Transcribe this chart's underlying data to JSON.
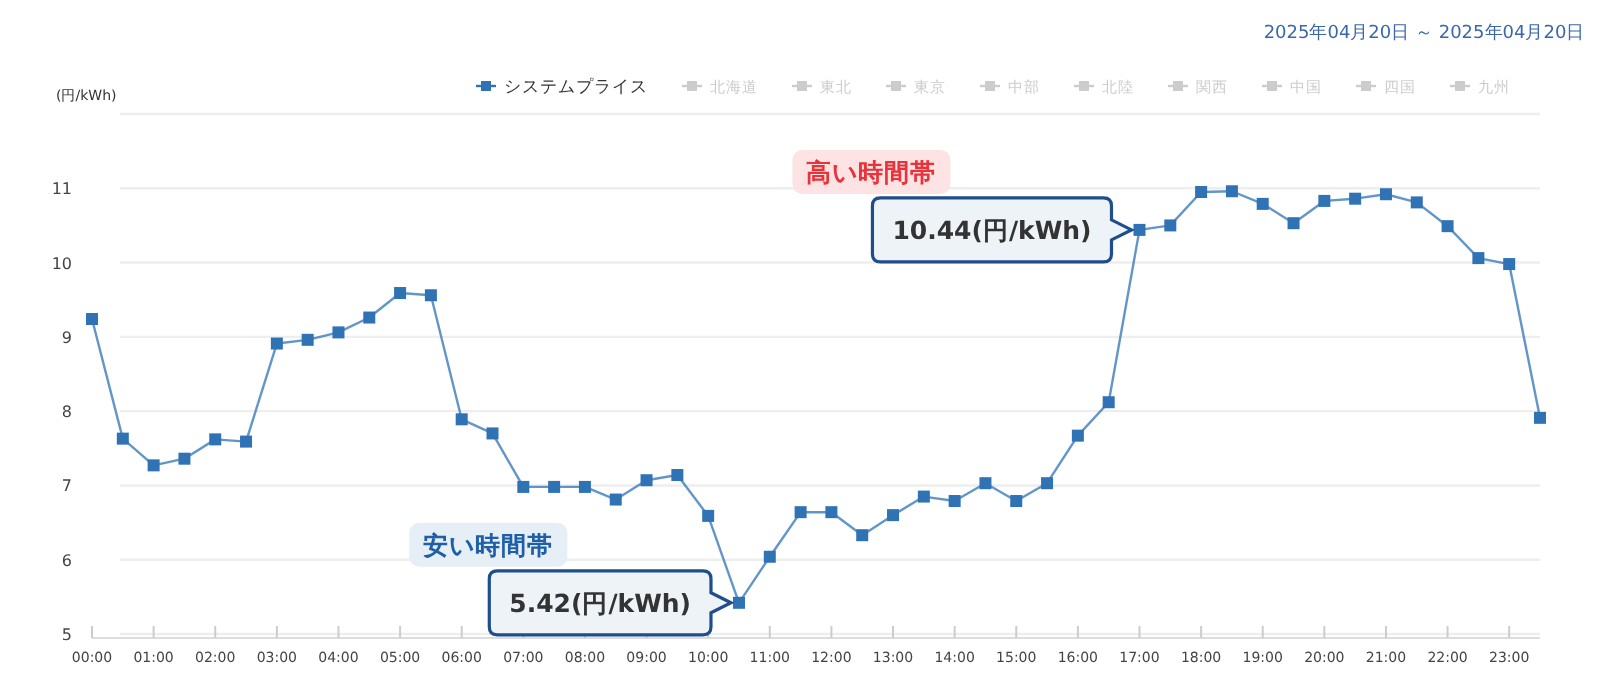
{
  "chart_data": {
    "type": "line",
    "subtitle": "2025年04月20日 ～ 2025年04月20日",
    "ylabel": "(円/kWh)",
    "x": [
      0,
      0.5,
      1,
      1.5,
      2,
      2.5,
      3,
      3.5,
      4,
      4.5,
      5,
      5.5,
      6,
      6.5,
      7,
      7.5,
      8,
      8.5,
      9,
      9.5,
      10,
      10.5,
      11,
      11.5,
      12,
      12.5,
      13,
      13.5,
      14,
      14.5,
      15,
      15.5,
      16,
      16.5,
      17,
      17.5,
      18,
      18.5,
      19,
      19.5,
      20,
      20.5,
      21,
      21.5,
      22,
      22.5,
      23,
      23.5
    ],
    "series": [
      {
        "name": "システムプライス",
        "color": "#2f73b5",
        "values": [
          9.24,
          7.63,
          7.27,
          7.36,
          7.62,
          7.59,
          8.91,
          8.96,
          9.06,
          9.26,
          9.59,
          9.56,
          7.89,
          7.7,
          6.98,
          6.98,
          6.98,
          6.81,
          7.07,
          7.14,
          6.59,
          5.42,
          6.04,
          6.64,
          6.64,
          6.33,
          6.6,
          6.85,
          6.79,
          7.03,
          6.79,
          7.03,
          7.67,
          8.12,
          10.44,
          10.5,
          10.95,
          10.96,
          10.79,
          10.53,
          10.83,
          10.86,
          10.92,
          10.81,
          10.49,
          10.06,
          9.98,
          7.91
        ]
      },
      {
        "name": "北海道",
        "color": "#cccccc",
        "values": [
          null,
          null,
          null,
          null,
          null,
          null,
          null,
          null,
          null,
          null,
          null,
          null,
          null,
          null,
          null,
          null,
          null,
          null,
          null,
          null,
          null,
          null,
          null,
          null,
          null,
          null,
          null,
          null,
          null,
          null,
          null,
          null,
          null,
          null,
          null,
          null,
          null,
          null,
          null,
          null,
          null,
          null,
          null,
          null,
          null,
          null,
          null,
          null
        ]
      },
      {
        "name": "東北",
        "color": "#cccccc",
        "values": [
          null,
          null,
          null,
          null,
          null,
          null,
          null,
          null,
          null,
          null,
          null,
          null,
          null,
          null,
          null,
          null,
          null,
          null,
          null,
          null,
          null,
          null,
          null,
          null,
          null,
          null,
          null,
          null,
          null,
          null,
          null,
          null,
          null,
          null,
          null,
          null,
          null,
          null,
          null,
          null,
          null,
          null,
          null,
          null,
          null,
          null,
          null,
          null
        ]
      },
      {
        "name": "東京",
        "color": "#cccccc",
        "values": [
          null,
          null,
          null,
          null,
          null,
          null,
          null,
          null,
          null,
          null,
          null,
          null,
          null,
          null,
          null,
          null,
          null,
          null,
          null,
          null,
          null,
          null,
          null,
          null,
          null,
          null,
          null,
          null,
          null,
          null,
          null,
          null,
          null,
          null,
          null,
          null,
          null,
          null,
          null,
          null,
          null,
          null,
          null,
          null,
          null,
          null,
          null,
          null
        ]
      },
      {
        "name": "中部",
        "color": "#cccccc",
        "values": [
          null,
          null,
          null,
          null,
          null,
          null,
          null,
          null,
          null,
          null,
          null,
          null,
          null,
          null,
          null,
          null,
          null,
          null,
          null,
          null,
          null,
          null,
          null,
          null,
          null,
          null,
          null,
          null,
          null,
          null,
          null,
          null,
          null,
          null,
          null,
          null,
          null,
          null,
          null,
          null,
          null,
          null,
          null,
          null,
          null,
          null,
          null,
          null
        ]
      },
      {
        "name": "北陸",
        "color": "#cccccc",
        "values": [
          null,
          null,
          null,
          null,
          null,
          null,
          null,
          null,
          null,
          null,
          null,
          null,
          null,
          null,
          null,
          null,
          null,
          null,
          null,
          null,
          null,
          null,
          null,
          null,
          null,
          null,
          null,
          null,
          null,
          null,
          null,
          null,
          null,
          null,
          null,
          null,
          null,
          null,
          null,
          null,
          null,
          null,
          null,
          null,
          null,
          null,
          null,
          null
        ]
      },
      {
        "name": "関西",
        "color": "#cccccc",
        "values": [
          null,
          null,
          null,
          null,
          null,
          null,
          null,
          null,
          null,
          null,
          null,
          null,
          null,
          null,
          null,
          null,
          null,
          null,
          null,
          null,
          null,
          null,
          null,
          null,
          null,
          null,
          null,
          null,
          null,
          null,
          null,
          null,
          null,
          null,
          null,
          null,
          null,
          null,
          null,
          null,
          null,
          null,
          null,
          null,
          null,
          null,
          null,
          null
        ]
      },
      {
        "name": "中国",
        "color": "#cccccc",
        "values": [
          null,
          null,
          null,
          null,
          null,
          null,
          null,
          null,
          null,
          null,
          null,
          null,
          null,
          null,
          null,
          null,
          null,
          null,
          null,
          null,
          null,
          null,
          null,
          null,
          null,
          null,
          null,
          null,
          null,
          null,
          null,
          null,
          null,
          null,
          null,
          null,
          null,
          null,
          null,
          null,
          null,
          null,
          null,
          null,
          null,
          null,
          null,
          null
        ]
      },
      {
        "name": "四国",
        "color": "#cccccc",
        "values": [
          null,
          null,
          null,
          null,
          null,
          null,
          null,
          null,
          null,
          null,
          null,
          null,
          null,
          null,
          null,
          null,
          null,
          null,
          null,
          null,
          null,
          null,
          null,
          null,
          null,
          null,
          null,
          null,
          null,
          null,
          null,
          null,
          null,
          null,
          null,
          null,
          null,
          null,
          null,
          null,
          null,
          null,
          null,
          null,
          null,
          null,
          null,
          null
        ]
      },
      {
        "name": "九州",
        "color": "#cccccc",
        "values": [
          null,
          null,
          null,
          null,
          null,
          null,
          null,
          null,
          null,
          null,
          null,
          null,
          null,
          null,
          null,
          null,
          null,
          null,
          null,
          null,
          null,
          null,
          null,
          null,
          null,
          null,
          null,
          null,
          null,
          null,
          null,
          null,
          null,
          null,
          null,
          null,
          null,
          null,
          null,
          null,
          null,
          null,
          null,
          null,
          null,
          null,
          null,
          null
        ]
      }
    ],
    "xlim": [
      0,
      23.5
    ],
    "xticks": [
      {
        "value": 0,
        "label": "00:00"
      },
      {
        "value": 1,
        "label": "01:00"
      },
      {
        "value": 2,
        "label": "02:00"
      },
      {
        "value": 3,
        "label": "03:00"
      },
      {
        "value": 4,
        "label": "04:00"
      },
      {
        "value": 5,
        "label": "05:00"
      },
      {
        "value": 6,
        "label": "06:00"
      },
      {
        "value": 7,
        "label": "07:00"
      },
      {
        "value": 8,
        "label": "08:00"
      },
      {
        "value": 9,
        "label": "09:00"
      },
      {
        "value": 10,
        "label": "10:00"
      },
      {
        "value": 11,
        "label": "11:00"
      },
      {
        "value": 12,
        "label": "12:00"
      },
      {
        "value": 13,
        "label": "13:00"
      },
      {
        "value": 14,
        "label": "14:00"
      },
      {
        "value": 15,
        "label": "15:00"
      },
      {
        "value": 16,
        "label": "16:00"
      },
      {
        "value": 17,
        "label": "17:00"
      },
      {
        "value": 18,
        "label": "18:00"
      },
      {
        "value": 19,
        "label": "19:00"
      },
      {
        "value": 20,
        "label": "20:00"
      },
      {
        "value": 21,
        "label": "21:00"
      },
      {
        "value": 22,
        "label": "22:00"
      },
      {
        "value": 23,
        "label": "23:00"
      }
    ],
    "ylim": [
      5,
      12
    ],
    "yticks": [
      5,
      6,
      7,
      8,
      9,
      10,
      11,
      {
        "value": 12,
        "label": null
      }
    ],
    "grid": "y",
    "legend": "top right",
    "marker": "square",
    "line_style": "solid",
    "annotations": [
      "高い時間帯",
      {
        "text": "10.44(円/kWh)",
        "x": 17,
        "y": 10.44
      },
      "安い時間帯",
      {
        "text": "5.42(円/kWh)",
        "x": 10.5,
        "y": 5.42
      }
    ]
  }
}
